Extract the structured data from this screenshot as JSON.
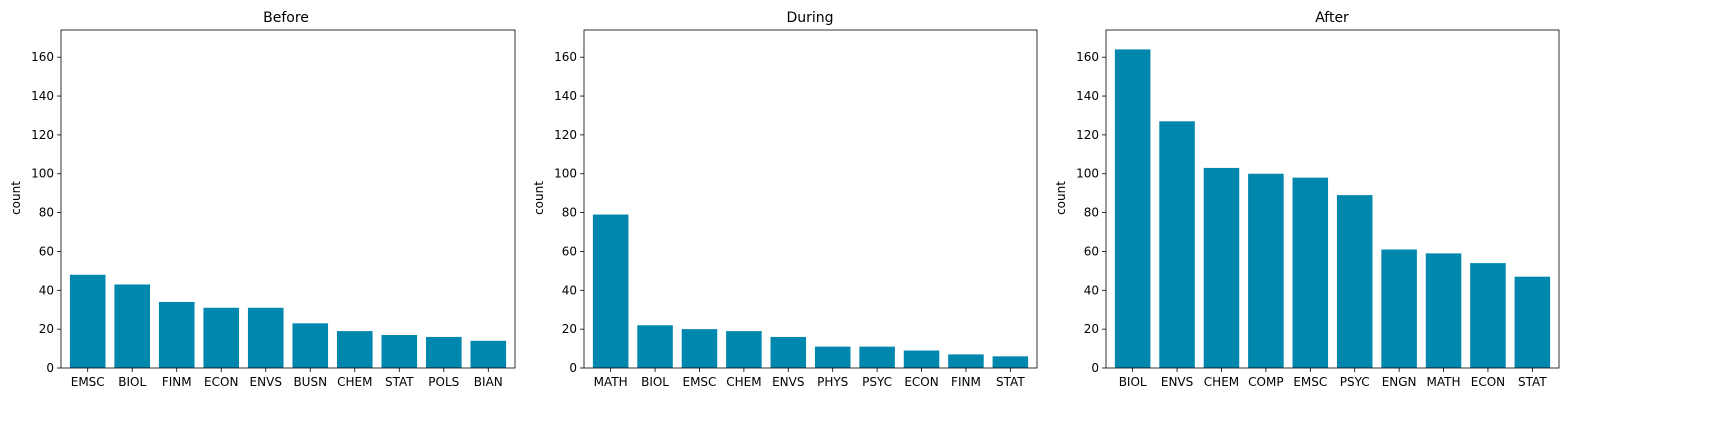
{
  "chart_data": [
    {
      "type": "bar",
      "title": "Before",
      "xlabel": "",
      "ylabel": "count",
      "ylim": [
        0,
        174
      ],
      "yticks": [
        0,
        20,
        40,
        60,
        80,
        100,
        120,
        140,
        160
      ],
      "grid": false,
      "color": "#0087ae",
      "categories": [
        "EMSC",
        "BIOL",
        "FINM",
        "ECON",
        "ENVS",
        "BUSN",
        "CHEM",
        "STAT",
        "POLS",
        "BIAN"
      ],
      "values": [
        48,
        43,
        34,
        31,
        31,
        23,
        19,
        17,
        16,
        14
      ]
    },
    {
      "type": "bar",
      "title": "During",
      "xlabel": "",
      "ylabel": "count",
      "ylim": [
        0,
        174
      ],
      "yticks": [
        0,
        20,
        40,
        60,
        80,
        100,
        120,
        140,
        160
      ],
      "grid": false,
      "color": "#0087ae",
      "categories": [
        "MATH",
        "BIOL",
        "EMSC",
        "CHEM",
        "ENVS",
        "PHYS",
        "PSYC",
        "ECON",
        "FINM",
        "STAT"
      ],
      "values": [
        79,
        22,
        20,
        19,
        16,
        11,
        11,
        9,
        7,
        6
      ]
    },
    {
      "type": "bar",
      "title": "After",
      "xlabel": "",
      "ylabel": "count",
      "ylim": [
        0,
        174
      ],
      "yticks": [
        0,
        20,
        40,
        60,
        80,
        100,
        120,
        140,
        160
      ],
      "grid": false,
      "color": "#0087ae",
      "categories": [
        "BIOL",
        "ENVS",
        "CHEM",
        "COMP",
        "EMSC",
        "PSYC",
        "ENGN",
        "MATH",
        "ECON",
        "STAT"
      ],
      "values": [
        164,
        127,
        103,
        100,
        98,
        89,
        61,
        59,
        54,
        47
      ]
    }
  ]
}
